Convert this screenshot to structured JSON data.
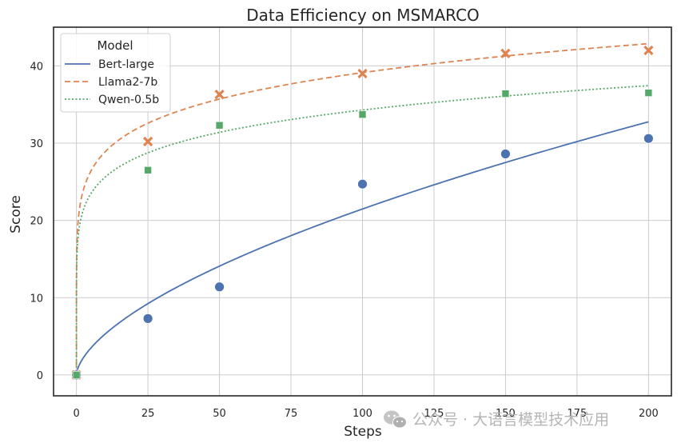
{
  "chart_data": {
    "type": "line",
    "title": "Data Efficiency on MSMARCO",
    "xlabel": "Steps",
    "ylabel": "Score",
    "xlim": [
      -8,
      208
    ],
    "ylim": [
      -2.7,
      45
    ],
    "xticks": [
      0,
      25,
      50,
      75,
      100,
      125,
      150,
      175,
      200
    ],
    "yticks": [
      0,
      10,
      20,
      30,
      40
    ],
    "grid": true,
    "legend": {
      "title": "Model",
      "placement": "top-left"
    },
    "series": [
      {
        "name": "Bert-large",
        "color": "#4c72b0",
        "line_style": "solid",
        "marker": "circle",
        "points": {
          "x": [
            0,
            25,
            50,
            100,
            150,
            200
          ],
          "y": [
            0,
            7.3,
            11.4,
            24.7,
            28.6,
            30.6
          ]
        },
        "fit": {
          "model": "a*x^b",
          "a": 1.3,
          "b": 0.609
        }
      },
      {
        "name": "Llama2-7b",
        "color": "#dd8452",
        "line_style": "dashed",
        "marker": "x",
        "points": {
          "x": [
            0,
            25,
            50,
            100,
            150,
            200
          ],
          "y": [
            0,
            30.2,
            36.3,
            39.0,
            41.6,
            42.0
          ]
        },
        "fit": {
          "model": "a*x^b",
          "a": 21.3,
          "b": 0.132
        }
      },
      {
        "name": "Qwen-0.5b",
        "color": "#55a868",
        "line_style": "dotted",
        "marker": "square",
        "points": {
          "x": [
            0,
            25,
            50,
            100,
            150,
            200
          ],
          "y": [
            0,
            26.5,
            32.3,
            33.7,
            36.4,
            36.5
          ]
        },
        "fit": {
          "model": "a*x^b",
          "a": 19.1,
          "b": 0.127
        }
      }
    ]
  },
  "watermark": "公众号 · 大语言模型技术应用"
}
